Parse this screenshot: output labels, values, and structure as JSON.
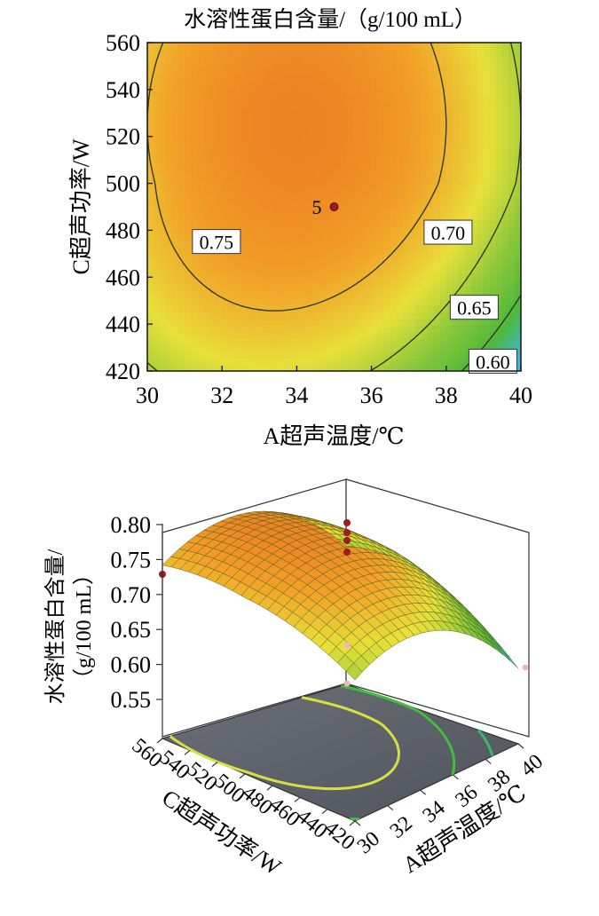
{
  "chart_data": [
    {
      "type": "contour",
      "title": "水溶性蛋白含量/（g/100 mL）",
      "xlabel": "A超声温度/℃",
      "ylabel": "C超声功率/W",
      "xlim": [
        30,
        40
      ],
      "ylim": [
        420,
        560
      ],
      "x_ticks": [
        "30",
        "32",
        "34",
        "36",
        "38",
        "40"
      ],
      "y_ticks": [
        "420",
        "440",
        "460",
        "480",
        "500",
        "520",
        "540",
        "560"
      ],
      "contour_levels": [
        {
          "label": "0.75",
          "value": 0.75
        },
        {
          "label": "0.70",
          "value": 0.7
        },
        {
          "label": "0.65",
          "value": 0.65
        },
        {
          "label": "0.60",
          "value": 0.6
        }
      ],
      "design_point": {
        "x": 35,
        "y": 490,
        "label": "5"
      },
      "colormap": [
        "#1f6fe0",
        "#3fb6e8",
        "#4fb83a",
        "#8cc83a",
        "#e8e03a",
        "#f2a128",
        "#ea7a22"
      ]
    },
    {
      "type": "surface3d",
      "zlabel": "水溶性蛋白含量/\n（g/100 mL）",
      "xlabel": "A超声温度/℃",
      "ylabel": "C超声功率/W",
      "z_ticks": [
        "0.80",
        "0.75",
        "0.70",
        "0.65",
        "0.60",
        "0.55"
      ],
      "x_ticks": [
        "30",
        "32",
        "34",
        "36",
        "38",
        "40"
      ],
      "y_ticks": [
        "560",
        "540",
        "520",
        "500",
        "480",
        "460",
        "440",
        "420"
      ],
      "zlim": [
        0.55,
        0.8
      ]
    }
  ]
}
